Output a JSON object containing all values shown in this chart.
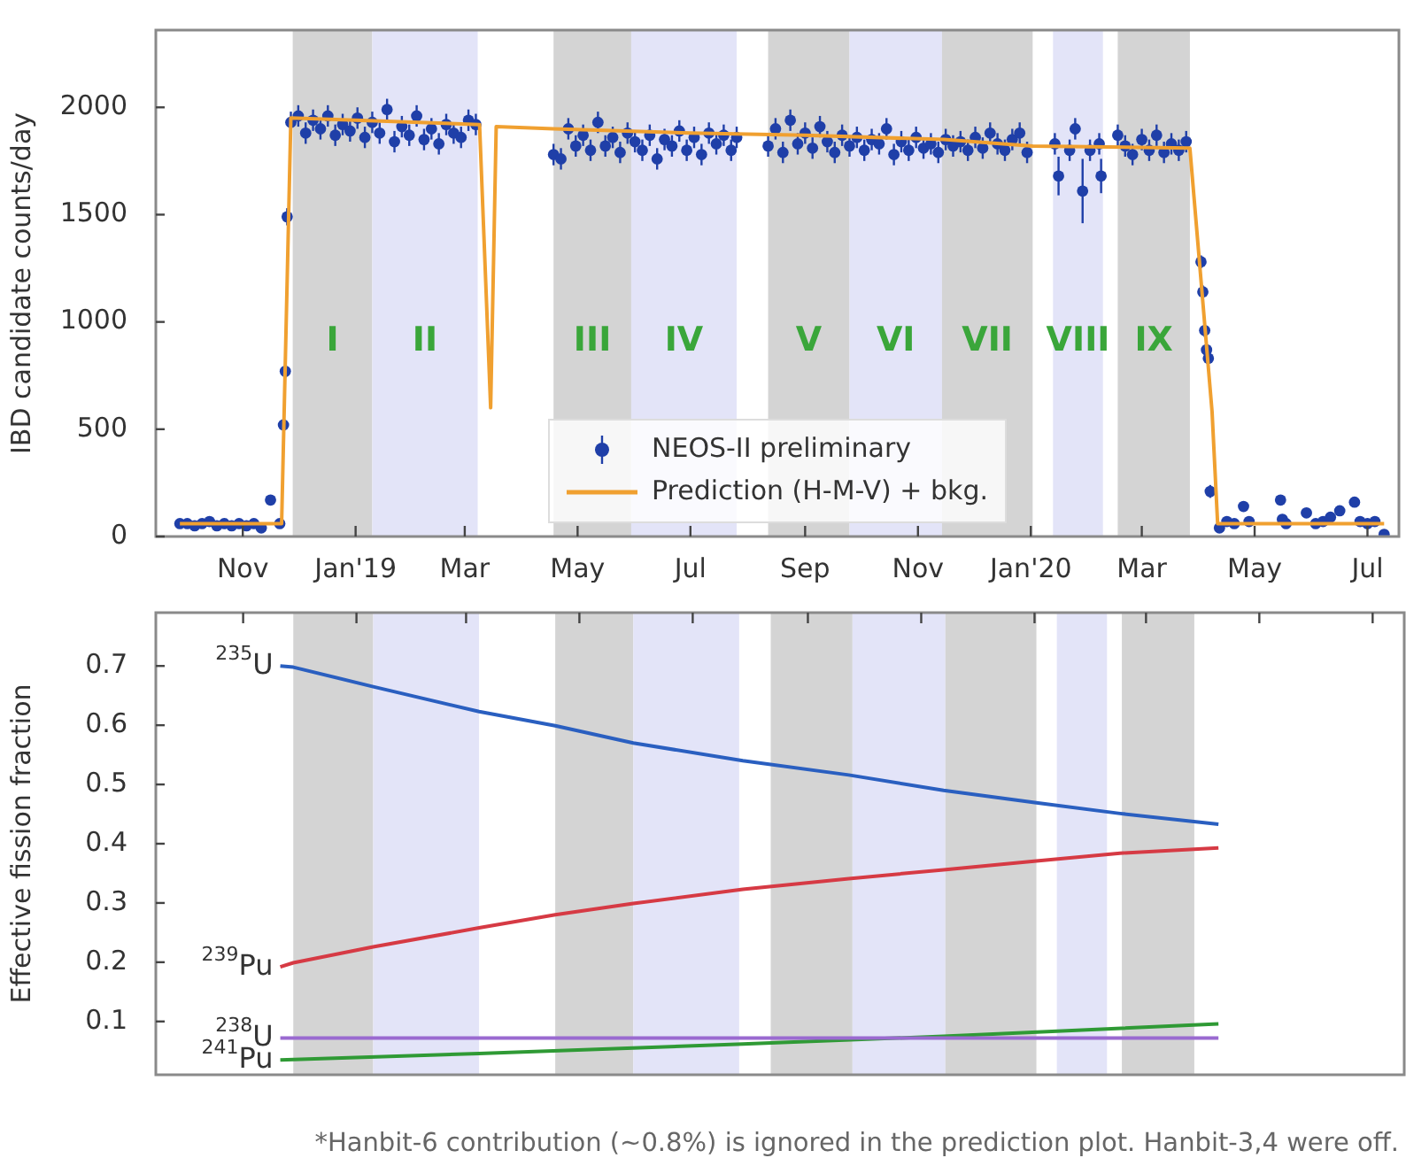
{
  "chart_data": [
    {
      "type": "scatter",
      "ylabel": "IBD candidate counts/day",
      "xlim": [
        "2018-09-15",
        "2020-07-18"
      ],
      "ylim": [
        0,
        2360
      ],
      "xticks": [
        {
          "value": "2018-11-01",
          "label": "Nov"
        },
        {
          "value": "2019-01-01",
          "label": "Jan'19"
        },
        {
          "value": "2019-03-01",
          "label": "Mar"
        },
        {
          "value": "2019-05-01",
          "label": "May"
        },
        {
          "value": "2019-07-01",
          "label": "Jul"
        },
        {
          "value": "2019-09-01",
          "label": "Sep"
        },
        {
          "value": "2019-11-01",
          "label": "Nov"
        },
        {
          "value": "2020-01-01",
          "label": "Jan'20"
        },
        {
          "value": "2020-03-01",
          "label": "Mar"
        },
        {
          "value": "2020-05-01",
          "label": "May"
        },
        {
          "value": "2020-07-01",
          "label": "Jul"
        }
      ],
      "yticks": [
        0,
        500,
        1000,
        1500,
        2000
      ],
      "legend": "bottom",
      "marker": "circle",
      "bands": [
        {
          "axis": "x",
          "from": "2018-11-28",
          "to": "2019-01-10",
          "label": "I",
          "color": "#d4d4d4"
        },
        {
          "axis": "x",
          "from": "2019-01-10",
          "to": "2019-03-08",
          "label": "II",
          "color": "#e3e4f8"
        },
        {
          "axis": "x",
          "from": "2019-04-18",
          "to": "2019-05-30",
          "label": "III",
          "color": "#d4d4d4"
        },
        {
          "axis": "x",
          "from": "2019-05-30",
          "to": "2019-07-26",
          "label": "IV",
          "color": "#e3e4f8"
        },
        {
          "axis": "x",
          "from": "2019-08-12",
          "to": "2019-09-25",
          "label": "V",
          "color": "#d4d4d4"
        },
        {
          "axis": "x",
          "from": "2019-09-25",
          "to": "2019-11-14",
          "label": "VI",
          "color": "#e3e4f8"
        },
        {
          "axis": "x",
          "from": "2019-11-14",
          "to": "2020-01-02",
          "label": "VII",
          "color": "#d4d4d4"
        },
        {
          "axis": "x",
          "from": "2020-01-13",
          "to": "2020-02-09",
          "label": "VIII",
          "color": "#e3e4f8"
        },
        {
          "axis": "x",
          "from": "2020-02-17",
          "to": "2020-03-27",
          "label": "IX",
          "color": "#d4d4d4"
        }
      ],
      "series": [
        {
          "name": "NEOS-II preliminary",
          "color": "#1f3fa8",
          "x": [
            "2018-09-28",
            "2018-10-02",
            "2018-10-06",
            "2018-10-10",
            "2018-10-14",
            "2018-10-18",
            "2018-10-22",
            "2018-10-26",
            "2018-10-30",
            "2018-11-03",
            "2018-11-07",
            "2018-11-11",
            "2018-11-16",
            "2018-11-21",
            "2018-11-23",
            "2018-11-24",
            "2018-11-25",
            "2018-11-27",
            "2018-12-01",
            "2018-12-05",
            "2018-12-09",
            "2018-12-13",
            "2018-12-17",
            "2018-12-21",
            "2018-12-25",
            "2018-12-29",
            "2019-01-02",
            "2019-01-06",
            "2019-01-10",
            "2019-01-14",
            "2019-01-18",
            "2019-01-22",
            "2019-01-26",
            "2019-01-30",
            "2019-02-03",
            "2019-02-07",
            "2019-02-11",
            "2019-02-15",
            "2019-02-19",
            "2019-02-23",
            "2019-02-27",
            "2019-03-03",
            "2019-03-07",
            "2019-04-18",
            "2019-04-22",
            "2019-04-26",
            "2019-04-30",
            "2019-05-04",
            "2019-05-08",
            "2019-05-12",
            "2019-05-16",
            "2019-05-20",
            "2019-05-24",
            "2019-05-28",
            "2019-06-01",
            "2019-06-05",
            "2019-06-09",
            "2019-06-13",
            "2019-06-17",
            "2019-06-21",
            "2019-06-25",
            "2019-06-29",
            "2019-07-03",
            "2019-07-07",
            "2019-07-11",
            "2019-07-15",
            "2019-07-19",
            "2019-07-23",
            "2019-07-26",
            "2019-08-12",
            "2019-08-16",
            "2019-08-20",
            "2019-08-24",
            "2019-08-28",
            "2019-09-01",
            "2019-09-05",
            "2019-09-09",
            "2019-09-13",
            "2019-09-17",
            "2019-09-21",
            "2019-09-25",
            "2019-09-29",
            "2019-10-03",
            "2019-10-07",
            "2019-10-11",
            "2019-10-15",
            "2019-10-19",
            "2019-10-23",
            "2019-10-27",
            "2019-10-31",
            "2019-11-04",
            "2019-11-08",
            "2019-11-12",
            "2019-11-16",
            "2019-11-20",
            "2019-11-24",
            "2019-11-28",
            "2019-12-02",
            "2019-12-06",
            "2019-12-10",
            "2019-12-14",
            "2019-12-18",
            "2019-12-22",
            "2019-12-26",
            "2019-12-30",
            "2020-01-14",
            "2020-01-16",
            "2020-01-22",
            "2020-01-25",
            "2020-01-29",
            "2020-02-02",
            "2020-02-07",
            "2020-02-08",
            "2020-02-17",
            "2020-02-21",
            "2020-02-25",
            "2020-03-01",
            "2020-03-05",
            "2020-03-09",
            "2020-03-13",
            "2020-03-17",
            "2020-03-21",
            "2020-03-25",
            "2020-04-02",
            "2020-04-03",
            "2020-04-04",
            "2020-04-05",
            "2020-04-06",
            "2020-04-07",
            "2020-04-12",
            "2020-04-16",
            "2020-04-20",
            "2020-04-25",
            "2020-04-28",
            "2020-05-15",
            "2020-05-16",
            "2020-05-18",
            "2020-05-29",
            "2020-06-03",
            "2020-06-07",
            "2020-06-11",
            "2020-06-16",
            "2020-06-24",
            "2020-06-27",
            "2020-07-01",
            "2020-07-05",
            "2020-07-10"
          ],
          "values": [
            60,
            60,
            50,
            60,
            70,
            50,
            60,
            50,
            60,
            50,
            60,
            40,
            170,
            60,
            520,
            770,
            1490,
            1930,
            1960,
            1880,
            1940,
            1900,
            1960,
            1870,
            1920,
            1890,
            1950,
            1860,
            1930,
            1880,
            1990,
            1840,
            1910,
            1870,
            1960,
            1850,
            1900,
            1830,
            1920,
            1880,
            1860,
            1940,
            1920,
            1780,
            1760,
            1900,
            1820,
            1870,
            1800,
            1930,
            1820,
            1860,
            1790,
            1880,
            1840,
            1800,
            1870,
            1760,
            1850,
            1820,
            1890,
            1800,
            1860,
            1780,
            1880,
            1830,
            1870,
            1800,
            1860,
            1820,
            1900,
            1790,
            1940,
            1830,
            1880,
            1810,
            1910,
            1840,
            1790,
            1870,
            1820,
            1860,
            1800,
            1850,
            1830,
            1900,
            1780,
            1840,
            1800,
            1860,
            1810,
            1830,
            1790,
            1850,
            1820,
            1840,
            1800,
            1860,
            1810,
            1880,
            1830,
            1800,
            1850,
            1880,
            1790,
            1830,
            1680,
            1800,
            1900,
            1610,
            1800,
            1830,
            1680,
            1870,
            1820,
            1780,
            1850,
            1800,
            1870,
            1790,
            1830,
            1800,
            1840,
            1280,
            1140,
            960,
            870,
            830,
            210,
            40,
            70,
            60,
            140,
            70,
            170,
            80,
            60,
            110,
            60,
            70,
            90,
            120,
            160,
            70,
            60,
            70,
            10
          ],
          "errors": [
            10,
            10,
            10,
            10,
            10,
            10,
            10,
            10,
            10,
            10,
            10,
            10,
            15,
            10,
            30,
            30,
            40,
            50,
            50,
            50,
            50,
            50,
            50,
            50,
            50,
            50,
            50,
            50,
            50,
            50,
            50,
            50,
            50,
            50,
            50,
            50,
            50,
            50,
            50,
            50,
            50,
            50,
            50,
            50,
            50,
            50,
            50,
            50,
            50,
            50,
            50,
            50,
            50,
            50,
            50,
            50,
            50,
            50,
            50,
            50,
            50,
            50,
            50,
            50,
            50,
            50,
            50,
            50,
            50,
            50,
            50,
            50,
            50,
            50,
            50,
            50,
            50,
            50,
            50,
            50,
            50,
            50,
            50,
            50,
            50,
            50,
            50,
            50,
            50,
            50,
            50,
            50,
            50,
            50,
            50,
            50,
            50,
            50,
            50,
            50,
            50,
            50,
            50,
            50,
            50,
            50,
            90,
            50,
            50,
            150,
            50,
            50,
            80,
            50,
            50,
            50,
            50,
            50,
            50,
            50,
            50,
            50,
            50,
            30,
            30,
            30,
            30,
            30,
            30,
            10,
            10,
            10,
            10,
            10,
            10,
            10,
            10,
            10,
            10,
            10,
            10,
            10,
            10,
            10,
            10,
            10,
            10
          ]
        },
        {
          "name": "Prediction (H-M-V) + bkg.",
          "type": "line",
          "marker": "none",
          "color": "#f0a030",
          "x": [
            "2018-09-28",
            "2018-11-22",
            "2018-11-27",
            "2019-03-09",
            "2019-03-15",
            "2019-03-18",
            "2019-04-18",
            "2019-07-01",
            "2019-09-01",
            "2019-11-15",
            "2020-01-02",
            "2020-03-27",
            "2020-04-08",
            "2020-04-11",
            "2020-07-10"
          ],
          "values": [
            60,
            60,
            1950,
            1920,
            600,
            1910,
            1900,
            1880,
            1870,
            1850,
            1820,
            1810,
            580,
            60,
            60
          ]
        }
      ]
    },
    {
      "type": "line",
      "ylabel": "Effective fission fraction",
      "xlim": [
        "2018-09-15",
        "2020-07-18"
      ],
      "ylim": [
        0.01,
        0.79
      ],
      "xticks": [
        {
          "value": "2018-11-01",
          "label": null
        },
        {
          "value": "2019-01-01",
          "label": null
        },
        {
          "value": "2019-03-01",
          "label": null
        },
        {
          "value": "2019-05-01",
          "label": null
        },
        {
          "value": "2019-07-01",
          "label": null
        },
        {
          "value": "2019-09-01",
          "label": null
        },
        {
          "value": "2019-11-01",
          "label": null
        },
        {
          "value": "2020-01-01",
          "label": null
        },
        {
          "value": "2020-03-01",
          "label": null
        },
        {
          "value": "2020-05-01",
          "label": null
        },
        {
          "value": "2020-07-01",
          "label": null
        }
      ],
      "yticks": [
        0.1,
        0.2,
        0.3,
        0.4,
        0.5,
        0.6,
        0.7
      ],
      "tick_labels": "y",
      "bands": [
        {
          "axis": "x",
          "from": "2018-11-28",
          "to": "2019-01-10",
          "color": "#d4d4d4"
        },
        {
          "axis": "x",
          "from": "2019-01-10",
          "to": "2019-03-08",
          "color": "#e3e4f8"
        },
        {
          "axis": "x",
          "from": "2019-04-18",
          "to": "2019-05-30",
          "color": "#d4d4d4"
        },
        {
          "axis": "x",
          "from": "2019-05-30",
          "to": "2019-07-26",
          "color": "#e3e4f8"
        },
        {
          "axis": "x",
          "from": "2019-08-12",
          "to": "2019-09-25",
          "color": "#d4d4d4"
        },
        {
          "axis": "x",
          "from": "2019-09-25",
          "to": "2019-11-14",
          "color": "#e3e4f8"
        },
        {
          "axis": "x",
          "from": "2019-11-14",
          "to": "2020-01-02",
          "color": "#d4d4d4"
        },
        {
          "axis": "x",
          "from": "2020-01-13",
          "to": "2020-02-09",
          "color": "#e3e4f8"
        },
        {
          "axis": "x",
          "from": "2020-02-17",
          "to": "2020-03-27",
          "color": "#d4d4d4"
        }
      ],
      "annotations": [
        "*Hanbit-6 contribution (~0.8%) is ignored in the prediction plot. Hanbit-3,4 were off."
      ],
      "series": [
        {
          "name": "$^{235}$U",
          "color": "#2a5fc0",
          "x": [
            "2018-11-21",
            "2018-11-28",
            "2019-01-10",
            "2019-03-08",
            "2019-04-18",
            "2019-05-30",
            "2019-07-28",
            "2019-09-23",
            "2019-11-13",
            "2020-01-02",
            "2020-02-16",
            "2020-04-09"
          ],
          "values": [
            0.7,
            0.698,
            0.665,
            0.623,
            0.599,
            0.57,
            0.54,
            0.516,
            0.49,
            0.469,
            0.451,
            0.433
          ]
        },
        {
          "name": "$^{239}$Pu",
          "color": "#d63a44",
          "x": [
            "2018-11-21",
            "2018-11-28",
            "2019-01-10",
            "2019-03-08",
            "2019-04-18",
            "2019-05-30",
            "2019-07-28",
            "2019-09-23",
            "2019-11-13",
            "2020-01-02",
            "2020-02-16",
            "2020-04-09"
          ],
          "values": [
            0.192,
            0.199,
            0.226,
            0.258,
            0.28,
            0.299,
            0.323,
            0.341,
            0.356,
            0.371,
            0.384,
            0.393
          ]
        },
        {
          "name": "$^{238}$U",
          "color": "#9a6ad0",
          "x": [
            "2018-11-21",
            "2020-04-09"
          ],
          "values": [
            0.072,
            0.072
          ]
        },
        {
          "name": "$^{241}$Pu",
          "color": "#2f9a35",
          "x": [
            "2018-11-21",
            "2019-03-08",
            "2019-07-28",
            "2019-11-13",
            "2020-04-09"
          ],
          "values": [
            0.035,
            0.046,
            0.062,
            0.075,
            0.096
          ]
        }
      ]
    }
  ]
}
